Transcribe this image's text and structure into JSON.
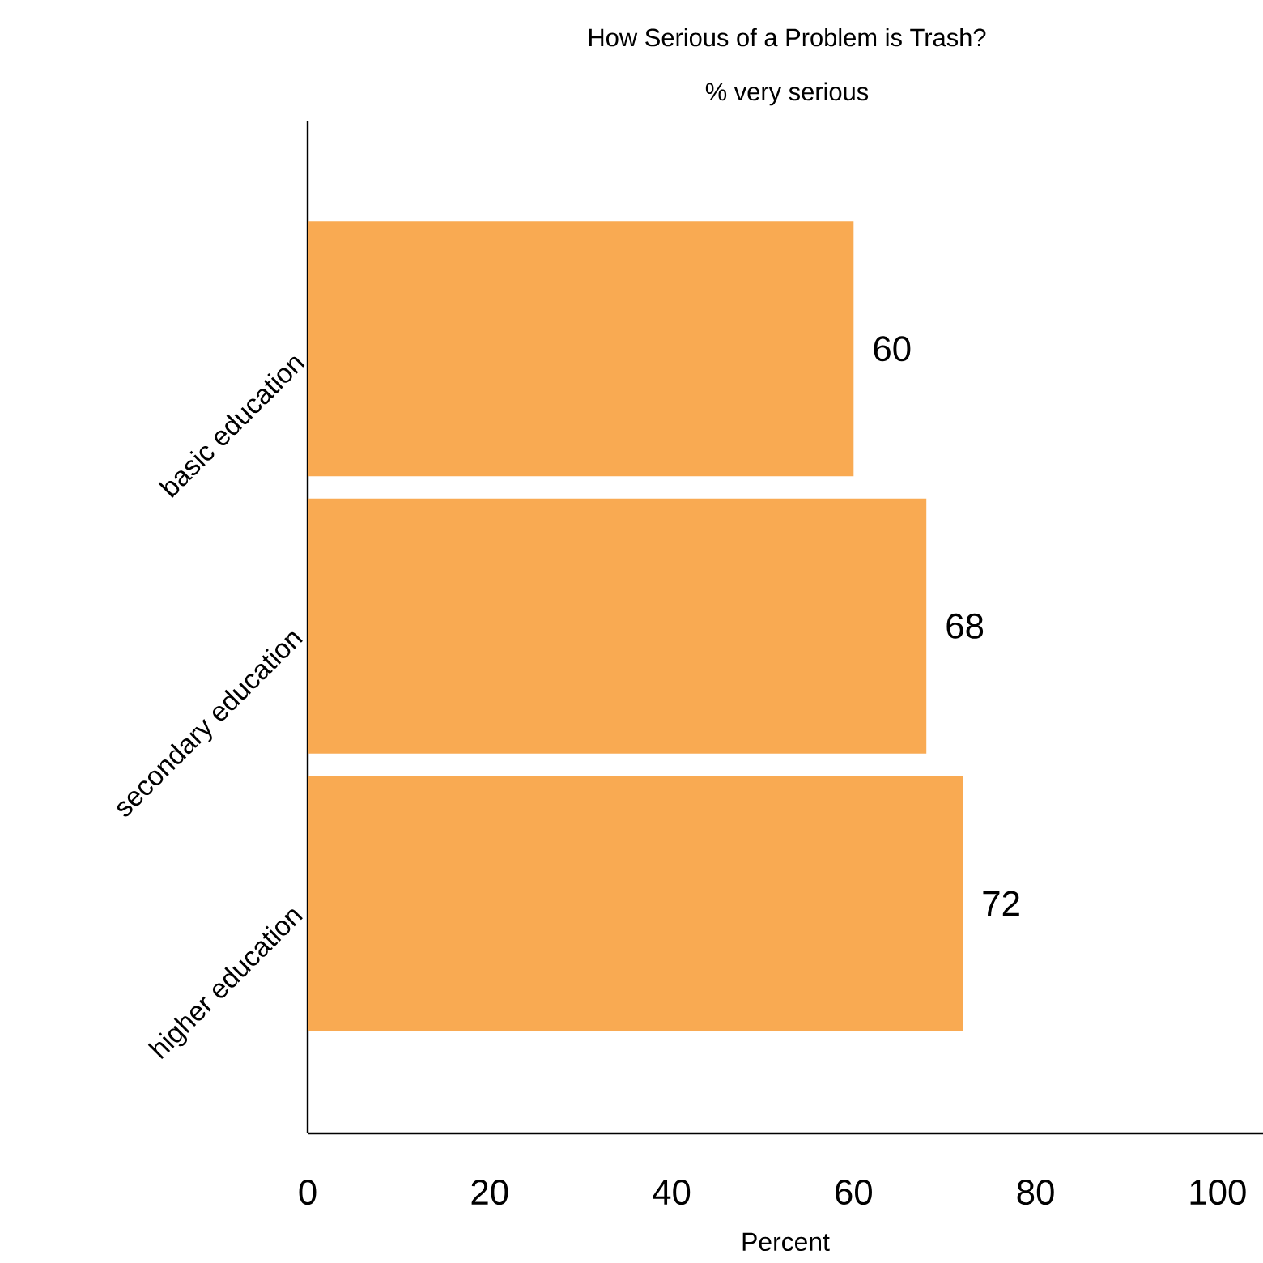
{
  "chart_data": {
    "type": "bar",
    "orientation": "horizontal",
    "title": "How Serious of a Problem is Trash?",
    "subtitle": "% very serious",
    "xlabel": "Percent",
    "categories": [
      "basic education",
      "secondary education",
      "higher education"
    ],
    "values": [
      60,
      68,
      72
    ],
    "color": "#f9aa52",
    "xlim": [
      0,
      105
    ],
    "xticks": [
      0,
      20,
      40,
      60,
      80,
      100
    ],
    "data_labels": true,
    "grid": false
  }
}
